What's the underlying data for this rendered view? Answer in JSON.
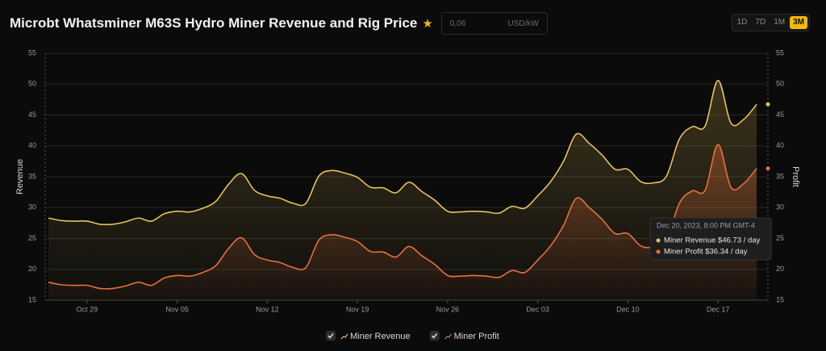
{
  "chart_data": {
    "type": "line",
    "title": "Microbt Whatsminer M63S Hydro Miner Revenue and Rig Price",
    "categories": [
      null,
      null,
      null,
      "Oct 29",
      null,
      null,
      null,
      null,
      null,
      null,
      "Nov 05",
      null,
      null,
      null,
      null,
      null,
      null,
      "Nov 12",
      null,
      null,
      null,
      null,
      null,
      null,
      "Nov 19",
      null,
      null,
      null,
      null,
      null,
      null,
      "Nov 26",
      null,
      null,
      null,
      null,
      null,
      null,
      "Dec 03",
      null,
      null,
      null,
      null,
      null,
      null,
      "Dec 10",
      null,
      null,
      null,
      null,
      null,
      null,
      "Dec 17",
      null,
      null,
      null
    ],
    "series": [
      {
        "name": "Miner Revenue",
        "color": "#e8c15a",
        "axis": "y",
        "values": [
          28.3,
          27.9,
          27.8,
          27.8,
          27.3,
          27.3,
          27.7,
          28.3,
          27.8,
          29.0,
          29.4,
          29.3,
          29.9,
          31.0,
          33.8,
          35.5,
          32.8,
          31.9,
          31.5,
          30.7,
          30.7,
          35.1,
          36.0,
          35.6,
          34.9,
          33.3,
          33.2,
          32.4,
          34.1,
          32.6,
          31.2,
          29.4,
          29.3,
          29.4,
          29.3,
          29.1,
          30.2,
          29.9,
          31.9,
          34.2,
          37.5,
          41.9,
          40.4,
          38.5,
          36.2,
          36.2,
          34.2,
          34.0,
          35.1,
          41.1,
          43.1,
          43.2,
          50.6,
          43.7,
          44.3,
          46.73
        ]
      },
      {
        "name": "Miner Profit",
        "color": "#e8703a",
        "axis": "y2",
        "values": [
          17.9,
          17.5,
          17.4,
          17.4,
          16.9,
          16.9,
          17.3,
          17.9,
          17.4,
          18.6,
          19.0,
          18.9,
          19.5,
          20.6,
          23.4,
          25.1,
          22.4,
          21.5,
          21.1,
          20.3,
          20.3,
          24.7,
          25.6,
          25.2,
          24.5,
          22.9,
          22.8,
          22.0,
          23.7,
          22.2,
          20.8,
          19.0,
          18.9,
          19.0,
          18.9,
          18.7,
          19.8,
          19.5,
          21.5,
          23.8,
          27.1,
          31.5,
          30.0,
          28.1,
          25.8,
          25.8,
          23.8,
          23.6,
          24.7,
          30.7,
          32.7,
          32.8,
          40.2,
          33.3,
          33.9,
          36.34
        ]
      }
    ],
    "ylabel": "Revenue",
    "y2label": "Profit",
    "ylim": [
      15,
      55
    ],
    "yticks": [
      15,
      20,
      25,
      30,
      35,
      40,
      45,
      50,
      55
    ],
    "y2lim": [
      15,
      55
    ],
    "y2ticks": [
      15,
      20,
      25,
      30,
      35,
      40,
      45,
      50,
      55
    ],
    "grid": true,
    "tooltip": {
      "date": "Dec 20, 2023, 8:00 PM GMT-4",
      "items": [
        "Miner Revenue $46.73 / day",
        "Miner Profit $36.34 / day"
      ]
    }
  },
  "ui": {
    "price_placeholder": "0,06",
    "price_unit": "USD/kW",
    "ranges": [
      "1D",
      "7D",
      "1M",
      "3M"
    ],
    "active_range": "3M"
  }
}
